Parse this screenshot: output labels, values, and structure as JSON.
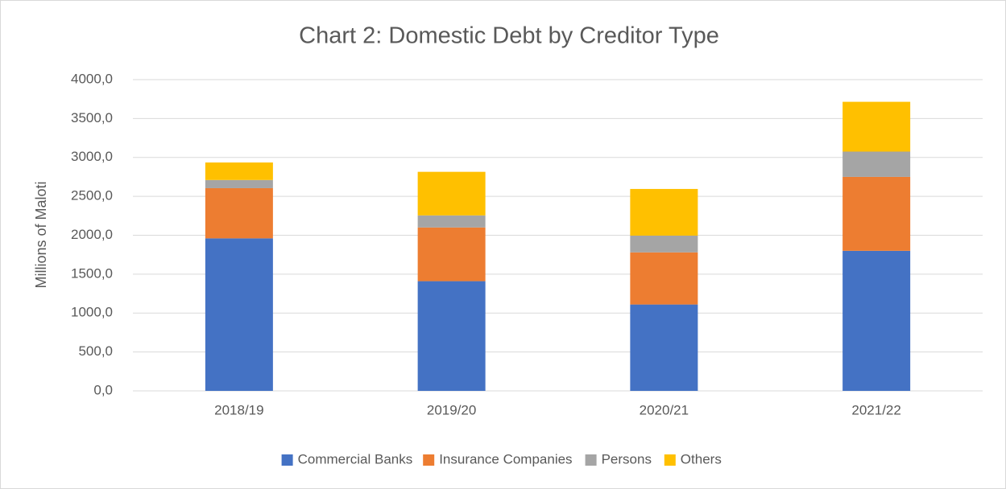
{
  "chart_data": {
    "type": "stacked_bar",
    "title": "Chart 2: Domestic Debt by Creditor Type",
    "y_label": "Millions of Maloti",
    "categories": [
      "2018/19",
      "2019/20",
      "2020/21",
      "2021/22"
    ],
    "series": [
      {
        "name": "Commercial Banks",
        "color": "#4472c4",
        "values": [
          1960,
          1410,
          1110,
          1800
        ]
      },
      {
        "name": "Insurance Companies",
        "color": "#ed7d31",
        "values": [
          645,
          690,
          670,
          950
        ]
      },
      {
        "name": "Persons",
        "color": "#a5a5a5",
        "values": [
          105,
          155,
          215,
          325
        ]
      },
      {
        "name": "Others",
        "color": "#ffc000",
        "values": [
          225,
          560,
          600,
          640
        ]
      }
    ],
    "ylim": [
      0,
      4000
    ],
    "yticks": [
      {
        "value": 0,
        "label": "0,0"
      },
      {
        "value": 500,
        "label": "500,0"
      },
      {
        "value": 1000,
        "label": "1000,0"
      },
      {
        "value": 1500,
        "label": "1500,0"
      },
      {
        "value": 2000,
        "label": "2000,0"
      },
      {
        "value": 2500,
        "label": "2500,0"
      },
      {
        "value": 3000,
        "label": "3000,0"
      },
      {
        "value": 3500,
        "label": "3500,0"
      },
      {
        "value": 4000,
        "label": "4000,0"
      }
    ],
    "grid": true,
    "legend": "bottom"
  }
}
